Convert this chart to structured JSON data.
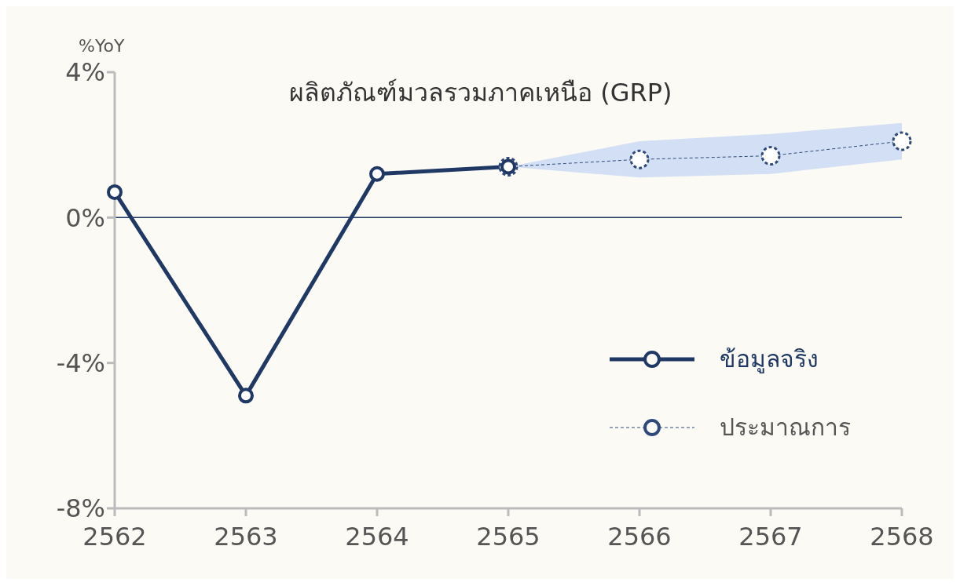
{
  "chart_data": {
    "type": "line",
    "title": "ผลิตภัณฑ์มวลรวมภาคเหนือ (GRP)",
    "ylabel": "%YoY",
    "categories": [
      "2562",
      "2563",
      "2564",
      "2565",
      "2566",
      "2567",
      "2568"
    ],
    "series": [
      {
        "name": "ข้อมูลจริง",
        "color": "#1f3864",
        "values": [
          0.7,
          -4.9,
          1.2,
          1.4,
          null,
          null,
          null
        ],
        "line_style": "solid"
      },
      {
        "name": "ประมาณการ",
        "color": "#2f4a7a",
        "values": [
          null,
          null,
          null,
          1.4,
          1.6,
          1.7,
          2.1
        ],
        "line_style": "dashed",
        "lower": [
          null,
          null,
          null,
          1.4,
          1.1,
          1.2,
          1.6
        ],
        "upper": [
          null,
          null,
          null,
          1.4,
          2.1,
          2.3,
          2.6
        ]
      }
    ],
    "ylim": [
      -8,
      4
    ],
    "yticks": [
      {
        "value": -8,
        "label": "-8%"
      },
      {
        "value": -4,
        "label": "-4%"
      },
      {
        "value": 0,
        "label": "0%"
      },
      {
        "value": 4,
        "label": "4%"
      }
    ],
    "ref_lines": [
      {
        "axis": "y",
        "value": 0,
        "color": "#1f3864"
      }
    ],
    "grid": false,
    "legend": "bottom right",
    "marker": "circle"
  }
}
